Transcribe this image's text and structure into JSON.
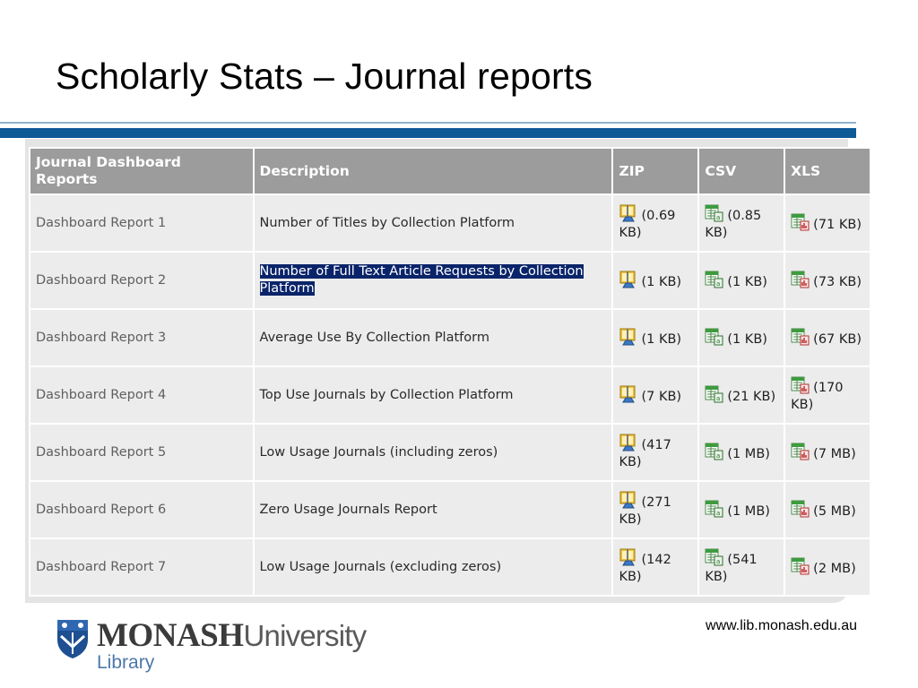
{
  "slide": {
    "title": "Scholarly Stats – Journal reports"
  },
  "table": {
    "headers": {
      "name": "Journal Dashboard Reports",
      "description": "Description",
      "zip": "ZIP",
      "csv": "CSV",
      "xls": "XLS"
    },
    "rows": [
      {
        "name": "Dashboard Report 1",
        "description": "Number of Titles by Collection Platform",
        "zip": "(0.69 KB)",
        "csv": "(0.85 KB)",
        "xls": "(71 KB)"
      },
      {
        "name": "Dashboard Report 2",
        "description": "Number of Full Text Article Requests by Collection Platform",
        "zip": "(1 KB)",
        "csv": "(1 KB)",
        "xls": "(73 KB)"
      },
      {
        "name": "Dashboard Report 3",
        "description": "Average Use By Collection Platform",
        "zip": "(1 KB)",
        "csv": "(1 KB)",
        "xls": "(67 KB)"
      },
      {
        "name": "Dashboard Report 4",
        "description": "Top Use Journals by Collection Platform",
        "zip": "(7 KB)",
        "csv": "(21 KB)",
        "xls": "(170 KB)"
      },
      {
        "name": "Dashboard Report 5",
        "description": "Low Usage Journals (including zeros)",
        "zip": "(417 KB)",
        "csv": "(1 MB)",
        "xls": "(7 MB)"
      },
      {
        "name": "Dashboard Report 6",
        "description": "Zero Usage Journals Report",
        "zip": "(271 KB)",
        "csv": "(1 MB)",
        "xls": "(5 MB)"
      },
      {
        "name": "Dashboard Report 7",
        "description": "Low Usage Journals (excluding zeros)",
        "zip": "(142 KB)",
        "csv": "(541 KB)",
        "xls": "(2 MB)"
      }
    ]
  },
  "icons": {
    "zip": "zip-archive-icon",
    "csv": "csv-spreadsheet-icon",
    "xls": "xls-spreadsheet-icon"
  },
  "colors": {
    "header_bg": "#9c9c9c",
    "row_bg": "#ececec",
    "title_rule": "#0e5a97",
    "selection": "#0a246a",
    "library_blue": "#4d78a8"
  },
  "footer": {
    "logo_bold": "MONASH",
    "logo_light": "University",
    "logo_sub": "Library",
    "url": "www.lib.monash.edu.au"
  }
}
